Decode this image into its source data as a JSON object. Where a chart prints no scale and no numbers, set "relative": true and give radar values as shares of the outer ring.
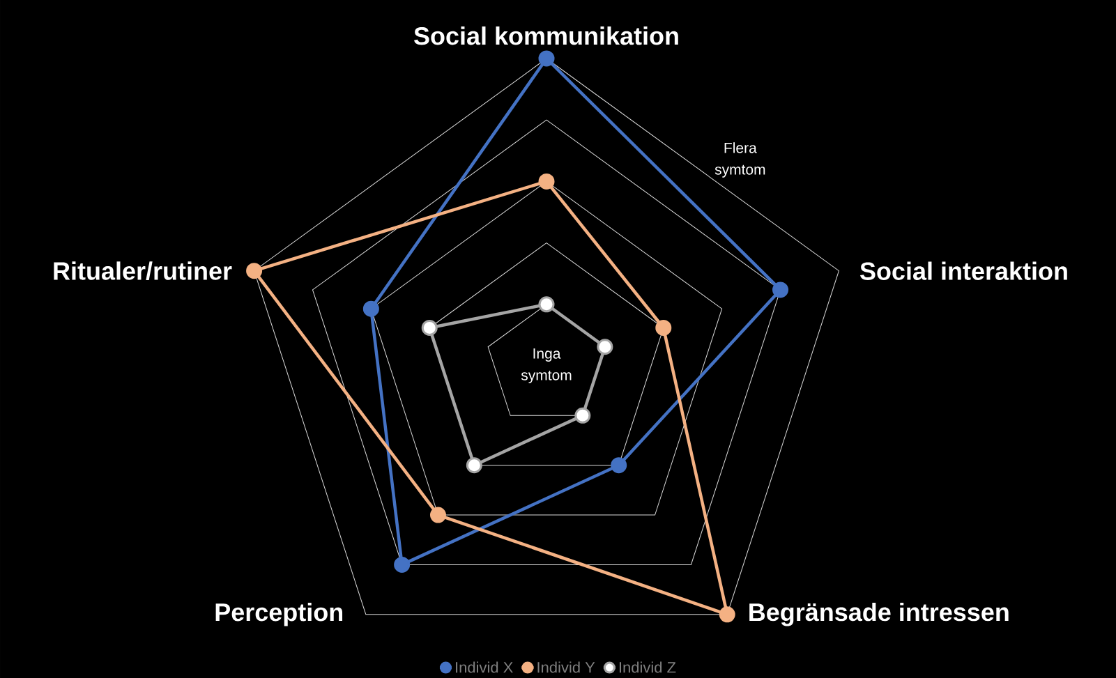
{
  "chart_data": {
    "type": "radar",
    "relative": true,
    "categories": [
      "Social kommunikation",
      "Social interaktion",
      "Begränsade intressen",
      "Perception",
      "Ritualer/rutiner"
    ],
    "series": [
      {
        "name": "Individ X",
        "color": "#4472c4",
        "values": [
          1.0,
          0.8,
          0.4,
          0.8,
          0.6
        ]
      },
      {
        "name": "Individ Y",
        "color": "#f4b183",
        "values": [
          0.6,
          0.4,
          1.0,
          0.6,
          1.0
        ]
      },
      {
        "name": "Individ Z",
        "color": "#a5a5a5",
        "values": [
          0.2,
          0.2,
          0.2,
          0.4,
          0.4
        ]
      }
    ],
    "annotations": [
      "Inga symtom",
      "Flera symtom"
    ],
    "grid": true,
    "legend": "bottom",
    "marker": "circle",
    "line_style": "solid"
  }
}
